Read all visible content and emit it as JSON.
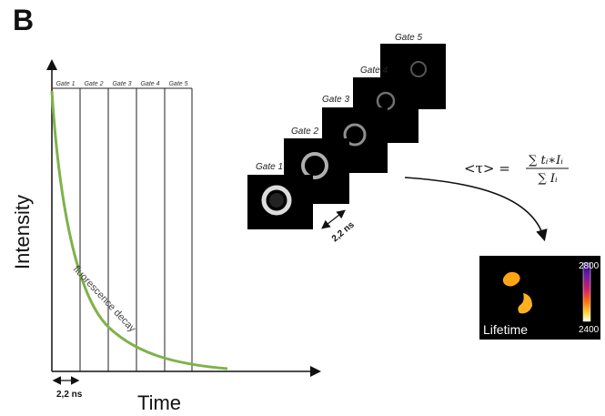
{
  "panel_label": "B",
  "axes": {
    "x_label": "Time",
    "y_label": "Intensity"
  },
  "curve_label": "fluorescence decay",
  "gates_top": [
    "Gate 1",
    "Gate 2",
    "Gate 3",
    "Gate 4",
    "Gate 5"
  ],
  "gate_width_label": "2,2 ns",
  "image_stack": {
    "gate_labels": [
      "Gate 1",
      "Gate 2",
      "Gate 3",
      "Gate 4",
      "Gate 5"
    ],
    "step_label": "2,2 ns"
  },
  "formula": {
    "lhs": "<τ> =",
    "numerator": "∑ tᵢ∗Iᵢ",
    "denominator": "∑ Iᵢ"
  },
  "lifetime_map": {
    "label": "Lifetime",
    "scale_max": "2800",
    "scale_min": "2400"
  },
  "colors": {
    "decay_curve": "#7fb24a",
    "axis": "#111111",
    "gate_lines": "#222222"
  }
}
